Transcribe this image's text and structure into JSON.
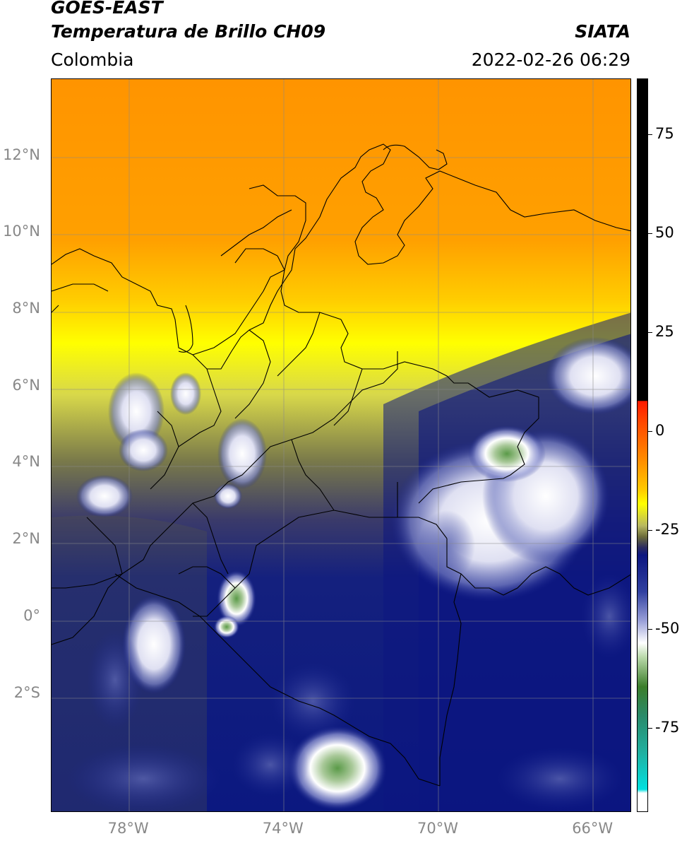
{
  "header": {
    "satellite": "GOES-EAST",
    "product": "Temperatura de Brillo CH09",
    "region": "Colombia",
    "agency": "SIATA",
    "datetime": "2022-02-26 06:29"
  },
  "map": {
    "lat_labels": [
      {
        "label": "12°N",
        "value": 12
      },
      {
        "label": "10°N",
        "value": 10
      },
      {
        "label": "8°N",
        "value": 8
      },
      {
        "label": "6°N",
        "value": 6
      },
      {
        "label": "4°N",
        "value": 4
      },
      {
        "label": "2°N",
        "value": 2
      },
      {
        "label": "0°",
        "value": 0
      },
      {
        "label": "2°S",
        "value": -2
      }
    ],
    "lon_labels": [
      {
        "label": "78°W",
        "value": -78
      },
      {
        "label": "74°W",
        "value": -74
      },
      {
        "label": "70°W",
        "value": -70
      },
      {
        "label": "66°W",
        "value": -66
      }
    ],
    "extent": {
      "lon_min": -80,
      "lon_max": -65,
      "lat_min": -5.1,
      "lat_max": 14
    }
  },
  "colorbar": {
    "ticks": [
      {
        "label": "75",
        "value": 75
      },
      {
        "label": "50",
        "value": 50
      },
      {
        "label": "25",
        "value": 25
      },
      {
        "label": "0",
        "value": 0
      },
      {
        "label": "-25",
        "value": -25
      },
      {
        "label": "-50",
        "value": -50
      },
      {
        "label": "-75",
        "value": -75
      }
    ],
    "range": [
      -96,
      89
    ],
    "colors": {
      "warm_black": "#000000",
      "red": "#ff1a00",
      "orange": "#ff8c00",
      "yellow": "#ffff00",
      "olive": "#6b6b3a",
      "navy": "#0c1680",
      "white": "#ffffff",
      "green": "#3b7d2a",
      "cyan": "#00e0e0"
    }
  }
}
